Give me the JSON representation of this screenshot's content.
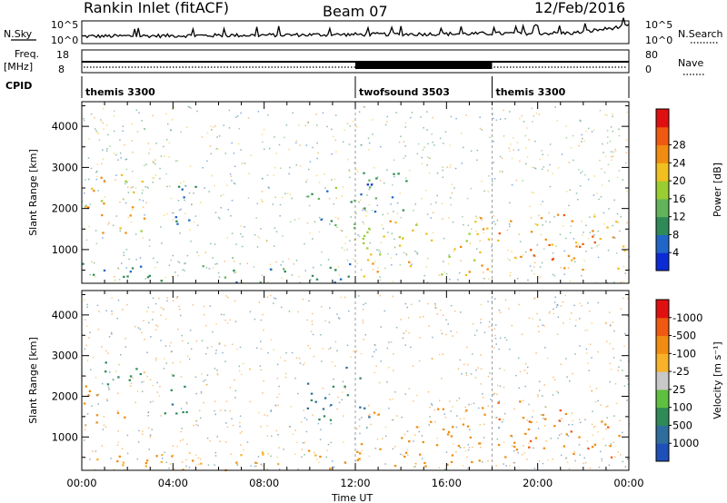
{
  "header": {
    "station": "Rankin Inlet (fitACF)",
    "beam": "Beam 07",
    "date": "12/Feb/2016"
  },
  "strip": {
    "nsky_label": "N.Sky",
    "nsky_ticks": [
      "10^5",
      "10^0"
    ],
    "nsearch_label": "N.Search",
    "nsearch_ticks": [
      "10^5",
      "10^0"
    ],
    "freq_label": [
      "Freq.",
      "[MHz]"
    ],
    "freq_ticks": [
      "18",
      "8"
    ],
    "nave_label": "Nave",
    "nave_ticks": [
      "80",
      "0"
    ],
    "cpid_label": "CPID",
    "modes": [
      {
        "name": "themis 3300",
        "start_hour": 0,
        "end_hour": 12
      },
      {
        "name": "twofsound 3503",
        "start_hour": 12,
        "end_hour": 18
      },
      {
        "name": "themis 3300",
        "start_hour": 18,
        "end_hour": 24
      }
    ]
  },
  "chart_data": [
    {
      "type": "heatmap",
      "title": "Power",
      "xlabel": "Time UT",
      "ylabel": "Slant Range [km]",
      "xlim": [
        0,
        24
      ],
      "x_ticks": [
        "00:00",
        "04:00",
        "08:00",
        "12:00",
        "16:00",
        "20:00",
        "00:00"
      ],
      "ylim": [
        180,
        4600
      ],
      "y_ticks": [
        1000,
        2000,
        3000,
        4000
      ],
      "colorbar": {
        "label": "Power [dB]",
        "ticks": [
          4,
          8,
          12,
          16,
          20,
          24,
          28
        ],
        "colors": [
          "#0b2bd6",
          "#1f66c8",
          "#2e8b57",
          "#62b45a",
          "#9acd32",
          "#f0c020",
          "#f08c10",
          "#ef5a10",
          "#e01010"
        ]
      },
      "echo_regions": [
        {
          "t": [
            0.0,
            2.8
          ],
          "r": [
            1300,
            2900
          ],
          "level": 24
        },
        {
          "t": [
            3.5,
            5.0
          ],
          "r": [
            1500,
            2600
          ],
          "level": 10
        },
        {
          "t": [
            9.6,
            11.0
          ],
          "r": [
            1600,
            2600
          ],
          "level": 10
        },
        {
          "t": [
            11.0,
            12.6
          ],
          "r": [
            1400,
            2800
          ],
          "level": 14
        },
        {
          "t": [
            12.2,
            14.5
          ],
          "r": [
            1800,
            2900
          ],
          "level": 8
        },
        {
          "t": [
            12.0,
            18.0
          ],
          "r": [
            300,
            1800
          ],
          "level": 22
        },
        {
          "t": [
            18.0,
            24.0
          ],
          "r": [
            500,
            1900
          ],
          "level": 26
        },
        {
          "t": [
            0.0,
            12.0
          ],
          "r": [
            200,
            700
          ],
          "level": 10
        }
      ]
    },
    {
      "type": "heatmap",
      "title": "Velocity",
      "xlabel": "Time UT",
      "ylabel": "Slant Range [km]",
      "xlim": [
        0,
        24
      ],
      "x_ticks": [
        "00:00",
        "04:00",
        "08:00",
        "12:00",
        "16:00",
        "20:00",
        "00:00"
      ],
      "ylim": [
        180,
        4600
      ],
      "y_ticks": [
        1000,
        2000,
        3000,
        4000
      ],
      "colorbar": {
        "label": "Velocity [m s⁻¹]",
        "ticks": [
          1000,
          500,
          100,
          25,
          -25,
          -100,
          -500,
          -1000
        ],
        "colors": [
          "#1f4fb8",
          "#2e6e9e",
          "#2e8b57",
          "#5fbf3f",
          "#c8c8c8",
          "#f7b22a",
          "#f08c10",
          "#ef5a10",
          "#e01010"
        ]
      },
      "echo_regions": [
        {
          "t": [
            0.0,
            2.0
          ],
          "r": [
            1300,
            2300
          ],
          "level": -300
        },
        {
          "t": [
            0.0,
            2.8
          ],
          "r": [
            2300,
            2900
          ],
          "level": 200
        },
        {
          "t": [
            3.5,
            5.0
          ],
          "r": [
            1500,
            2600
          ],
          "level": 500
        },
        {
          "t": [
            9.6,
            12.6
          ],
          "r": [
            1400,
            2800
          ],
          "level": 600
        },
        {
          "t": [
            12.0,
            18.0
          ],
          "r": [
            300,
            1800
          ],
          "level": -300
        },
        {
          "t": [
            18.0,
            24.0
          ],
          "r": [
            500,
            1900
          ],
          "level": -400
        },
        {
          "t": [
            0.0,
            12.0
          ],
          "r": [
            200,
            700
          ],
          "level": -100
        }
      ]
    }
  ]
}
